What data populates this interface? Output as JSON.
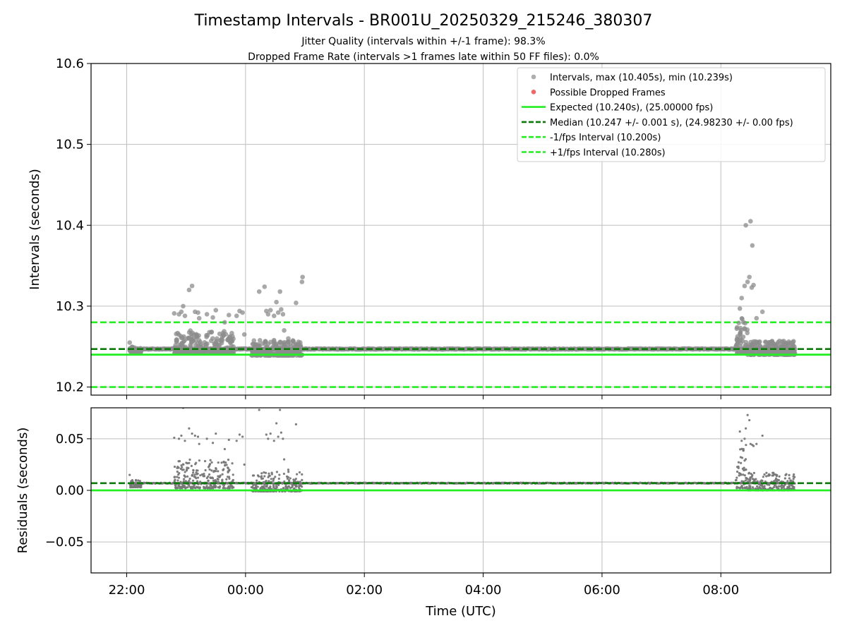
{
  "title": "Timestamp Intervals - BR001U_20250329_215246_380307",
  "subtitle_1": "Jitter Quality (intervals within +/-1 frame): 98.3%",
  "subtitle_2": "Dropped Frame Rate (intervals >1 frames late within 50 FF files): 0.0%",
  "colors": {
    "expected": "#22ee22",
    "median": "#0b7a0b",
    "interval_band": "#22ee22",
    "points_top": "#8c8c8c",
    "points_bottom": "#777777",
    "dropped": "#f06060",
    "grid": "#bfbfbf"
  },
  "chart_data": [
    {
      "type": "scatter",
      "name": "intervals",
      "xlabel": "",
      "ylabel": "Intervals (seconds)",
      "ylim": [
        10.19,
        10.6
      ],
      "yticks": [
        10.2,
        10.3,
        10.4,
        10.5,
        10.6
      ],
      "ytick_labels": [
        "10.2",
        "10.3",
        "10.4",
        "10.5",
        "10.6"
      ],
      "xlim_hours": [
        -2.6,
        9.85
      ],
      "grid": true,
      "legend_placement": "upper right",
      "legend": [
        {
          "label": "Intervals, max (10.405s), min (10.239s)",
          "kind": "dot",
          "color": "#a0a0a0"
        },
        {
          "label": "Possible Dropped Frames",
          "kind": "dot",
          "color": "#f06060"
        },
        {
          "label": "Expected (10.240s), (25.00000 fps)",
          "kind": "solid",
          "color": "#22ee22"
        },
        {
          "label": "Median (10.247 +/- 0.001 s), (24.98230 +/- 0.00 fps)",
          "kind": "dashed",
          "color": "#0b7a0b"
        },
        {
          "label": "-1/fps Interval (10.200s)",
          "kind": "dashed",
          "color": "#22ee22"
        },
        {
          "label": "+1/fps Interval (10.280s)",
          "kind": "dashed",
          "color": "#22ee22"
        }
      ],
      "reference_lines": {
        "expected": 10.24,
        "median": 10.247,
        "minus_fps": 10.2,
        "plus_fps": 10.28
      },
      "x_range_hours": [
        -1.95,
        9.25
      ],
      "dense_clusters": [
        {
          "x0": -1.95,
          "x1": -1.75,
          "ymin": 10.243,
          "ymax": 10.25
        },
        {
          "x0": -1.2,
          "x1": -0.2,
          "ymin": 10.242,
          "ymax": 10.27
        },
        {
          "x0": 0.1,
          "x1": 0.95,
          "ymin": 10.239,
          "ymax": 10.258
        },
        {
          "x0": 8.25,
          "x1": 8.45,
          "ymin": 10.242,
          "ymax": 10.285
        },
        {
          "x0": 8.45,
          "x1": 9.25,
          "ymin": 10.24,
          "ymax": 10.257
        }
      ],
      "outliers": [
        [
          -1.95,
          10.255
        ],
        [
          -1.7,
          10.247
        ],
        [
          -1.2,
          10.291
        ],
        [
          -1.12,
          10.29
        ],
        [
          -1.08,
          10.293
        ],
        [
          -1.05,
          10.3
        ],
        [
          -1.02,
          10.288
        ],
        [
          -0.95,
          10.32
        ],
        [
          -0.9,
          10.325
        ],
        [
          -0.85,
          10.293
        ],
        [
          -0.8,
          10.292
        ],
        [
          -0.78,
          10.285
        ],
        [
          -0.65,
          10.29
        ],
        [
          -0.55,
          10.286
        ],
        [
          -0.5,
          10.295
        ],
        [
          -0.35,
          10.28
        ],
        [
          -0.28,
          10.289
        ],
        [
          -0.15,
          10.288
        ],
        [
          -0.1,
          10.294
        ],
        [
          -0.05,
          10.292
        ],
        [
          -0.02,
          10.265
        ],
        [
          0.23,
          10.318
        ],
        [
          0.32,
          10.324
        ],
        [
          0.35,
          10.294
        ],
        [
          0.38,
          10.29
        ],
        [
          0.42,
          10.295
        ],
        [
          0.48,
          10.288
        ],
        [
          0.52,
          10.305
        ],
        [
          0.55,
          10.292
        ],
        [
          0.58,
          10.318
        ],
        [
          0.6,
          10.296
        ],
        [
          0.63,
          10.29
        ],
        [
          0.65,
          10.27
        ],
        [
          0.72,
          10.26
        ],
        [
          0.85,
          10.304
        ],
        [
          0.95,
          10.33
        ],
        [
          0.96,
          10.336
        ],
        [
          0.95,
          10.24
        ],
        [
          8.32,
          10.297
        ],
        [
          8.35,
          10.31
        ],
        [
          8.38,
          10.28
        ],
        [
          8.4,
          10.325
        ],
        [
          8.42,
          10.4
        ],
        [
          8.45,
          10.33
        ],
        [
          8.48,
          10.336
        ],
        [
          8.5,
          10.405
        ],
        [
          8.52,
          10.323
        ],
        [
          8.53,
          10.375
        ],
        [
          8.55,
          10.326
        ],
        [
          8.6,
          10.285
        ],
        [
          8.7,
          10.293
        ]
      ]
    },
    {
      "type": "scatter",
      "name": "residuals",
      "xlabel": "Time (UTC)",
      "ylabel": "Residuals (seconds)",
      "ylim": [
        -0.08,
        0.08
      ],
      "yticks": [
        -0.05,
        0.0,
        0.05
      ],
      "ytick_labels": [
        "−0.05",
        "0.00",
        "0.05"
      ],
      "xlim_hours": [
        -2.6,
        9.85
      ],
      "xticks_hours": [
        -2,
        0,
        2,
        4,
        6,
        8
      ],
      "xtick_labels": [
        "22:00",
        "00:00",
        "02:00",
        "04:00",
        "06:00",
        "08:00"
      ],
      "grid": true,
      "reference_lines": {
        "expected": 0.0,
        "median": 0.007
      },
      "x_range_hours": [
        -1.95,
        9.25
      ],
      "dense_clusters": [
        {
          "x0": -1.95,
          "x1": -1.75,
          "ymin": 0.003,
          "ymax": 0.01
        },
        {
          "x0": -1.2,
          "x1": -0.2,
          "ymin": 0.002,
          "ymax": 0.03
        },
        {
          "x0": 0.1,
          "x1": 0.95,
          "ymin": -0.001,
          "ymax": 0.018
        },
        {
          "x0": 8.25,
          "x1": 8.45,
          "ymin": 0.002,
          "ymax": 0.045
        },
        {
          "x0": 8.45,
          "x1": 9.25,
          "ymin": 0.0,
          "ymax": 0.017
        }
      ],
      "outliers": [
        [
          -1.95,
          0.015
        ],
        [
          -1.7,
          0.007
        ],
        [
          -1.2,
          0.051
        ],
        [
          -1.12,
          0.05
        ],
        [
          -1.08,
          0.053
        ],
        [
          -1.05,
          0.08
        ],
        [
          -1.02,
          0.048
        ],
        [
          -0.95,
          0.06
        ],
        [
          -0.9,
          0.055
        ],
        [
          -0.85,
          0.053
        ],
        [
          -0.8,
          0.052
        ],
        [
          -0.78,
          0.045
        ],
        [
          -0.65,
          0.05
        ],
        [
          -0.55,
          0.046
        ],
        [
          -0.5,
          0.055
        ],
        [
          -0.35,
          0.04
        ],
        [
          -0.28,
          0.049
        ],
        [
          -0.15,
          0.048
        ],
        [
          -0.1,
          0.054
        ],
        [
          -0.05,
          0.052
        ],
        [
          -0.02,
          0.025
        ],
        [
          0.23,
          0.078
        ],
        [
          0.32,
          0.084
        ],
        [
          0.35,
          0.054
        ],
        [
          0.38,
          0.05
        ],
        [
          0.42,
          0.055
        ],
        [
          0.48,
          0.048
        ],
        [
          0.52,
          0.065
        ],
        [
          0.55,
          0.052
        ],
        [
          0.58,
          0.078
        ],
        [
          0.6,
          0.056
        ],
        [
          0.63,
          0.05
        ],
        [
          0.65,
          0.03
        ],
        [
          0.72,
          0.02
        ],
        [
          0.85,
          0.064
        ],
        [
          0.95,
          0.01
        ],
        [
          0.95,
          0.0
        ],
        [
          8.32,
          0.057
        ],
        [
          8.35,
          0.048
        ],
        [
          8.38,
          0.04
        ],
        [
          8.4,
          0.05
        ],
        [
          8.42,
          0.06
        ],
        [
          8.45,
          0.073
        ],
        [
          8.48,
          0.068
        ],
        [
          8.5,
          0.045
        ],
        [
          8.53,
          0.044
        ],
        [
          8.55,
          0.043
        ],
        [
          8.6,
          0.045
        ],
        [
          8.7,
          0.053
        ]
      ]
    }
  ]
}
